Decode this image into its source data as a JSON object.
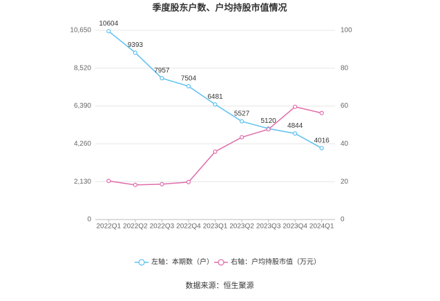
{
  "chart_data": {
    "type": "line",
    "title": "季度股东户数、户均持股市值情况",
    "categories": [
      "2022Q1",
      "2022Q2",
      "2022Q3",
      "2022Q4",
      "2023Q1",
      "2023Q2",
      "2023Q3",
      "2023Q4",
      "2024Q1"
    ],
    "series": [
      {
        "name": "左轴：本期数（户）",
        "color": "#5bc0f0",
        "values": [
          10604,
          9393,
          7957,
          7504,
          6481,
          5527,
          5120,
          4844,
          4016
        ]
      },
      {
        "name": "右轴：户均持股市值（万元）",
        "color": "#e06aaa",
        "axis": "y2",
        "values": [
          20.4,
          18.3,
          18.7,
          19.8,
          35.9,
          43.5,
          47.7,
          59.6,
          56.3
        ]
      }
    ],
    "ylim": [
      0,
      10650
    ],
    "yticks": [
      0,
      {
        "value": 2130,
        "label": "2,130"
      },
      {
        "value": 4260,
        "label": "4,260"
      },
      {
        "value": 6390,
        "label": "6,390"
      },
      {
        "value": 8520,
        "label": "8,520"
      },
      {
        "value": 10650,
        "label": "10,650"
      }
    ],
    "y2lim": [
      0,
      100
    ],
    "y2ticks": [
      0,
      20,
      40,
      60,
      80,
      100
    ],
    "grid": true,
    "source": "数据来源：恒生聚源"
  }
}
